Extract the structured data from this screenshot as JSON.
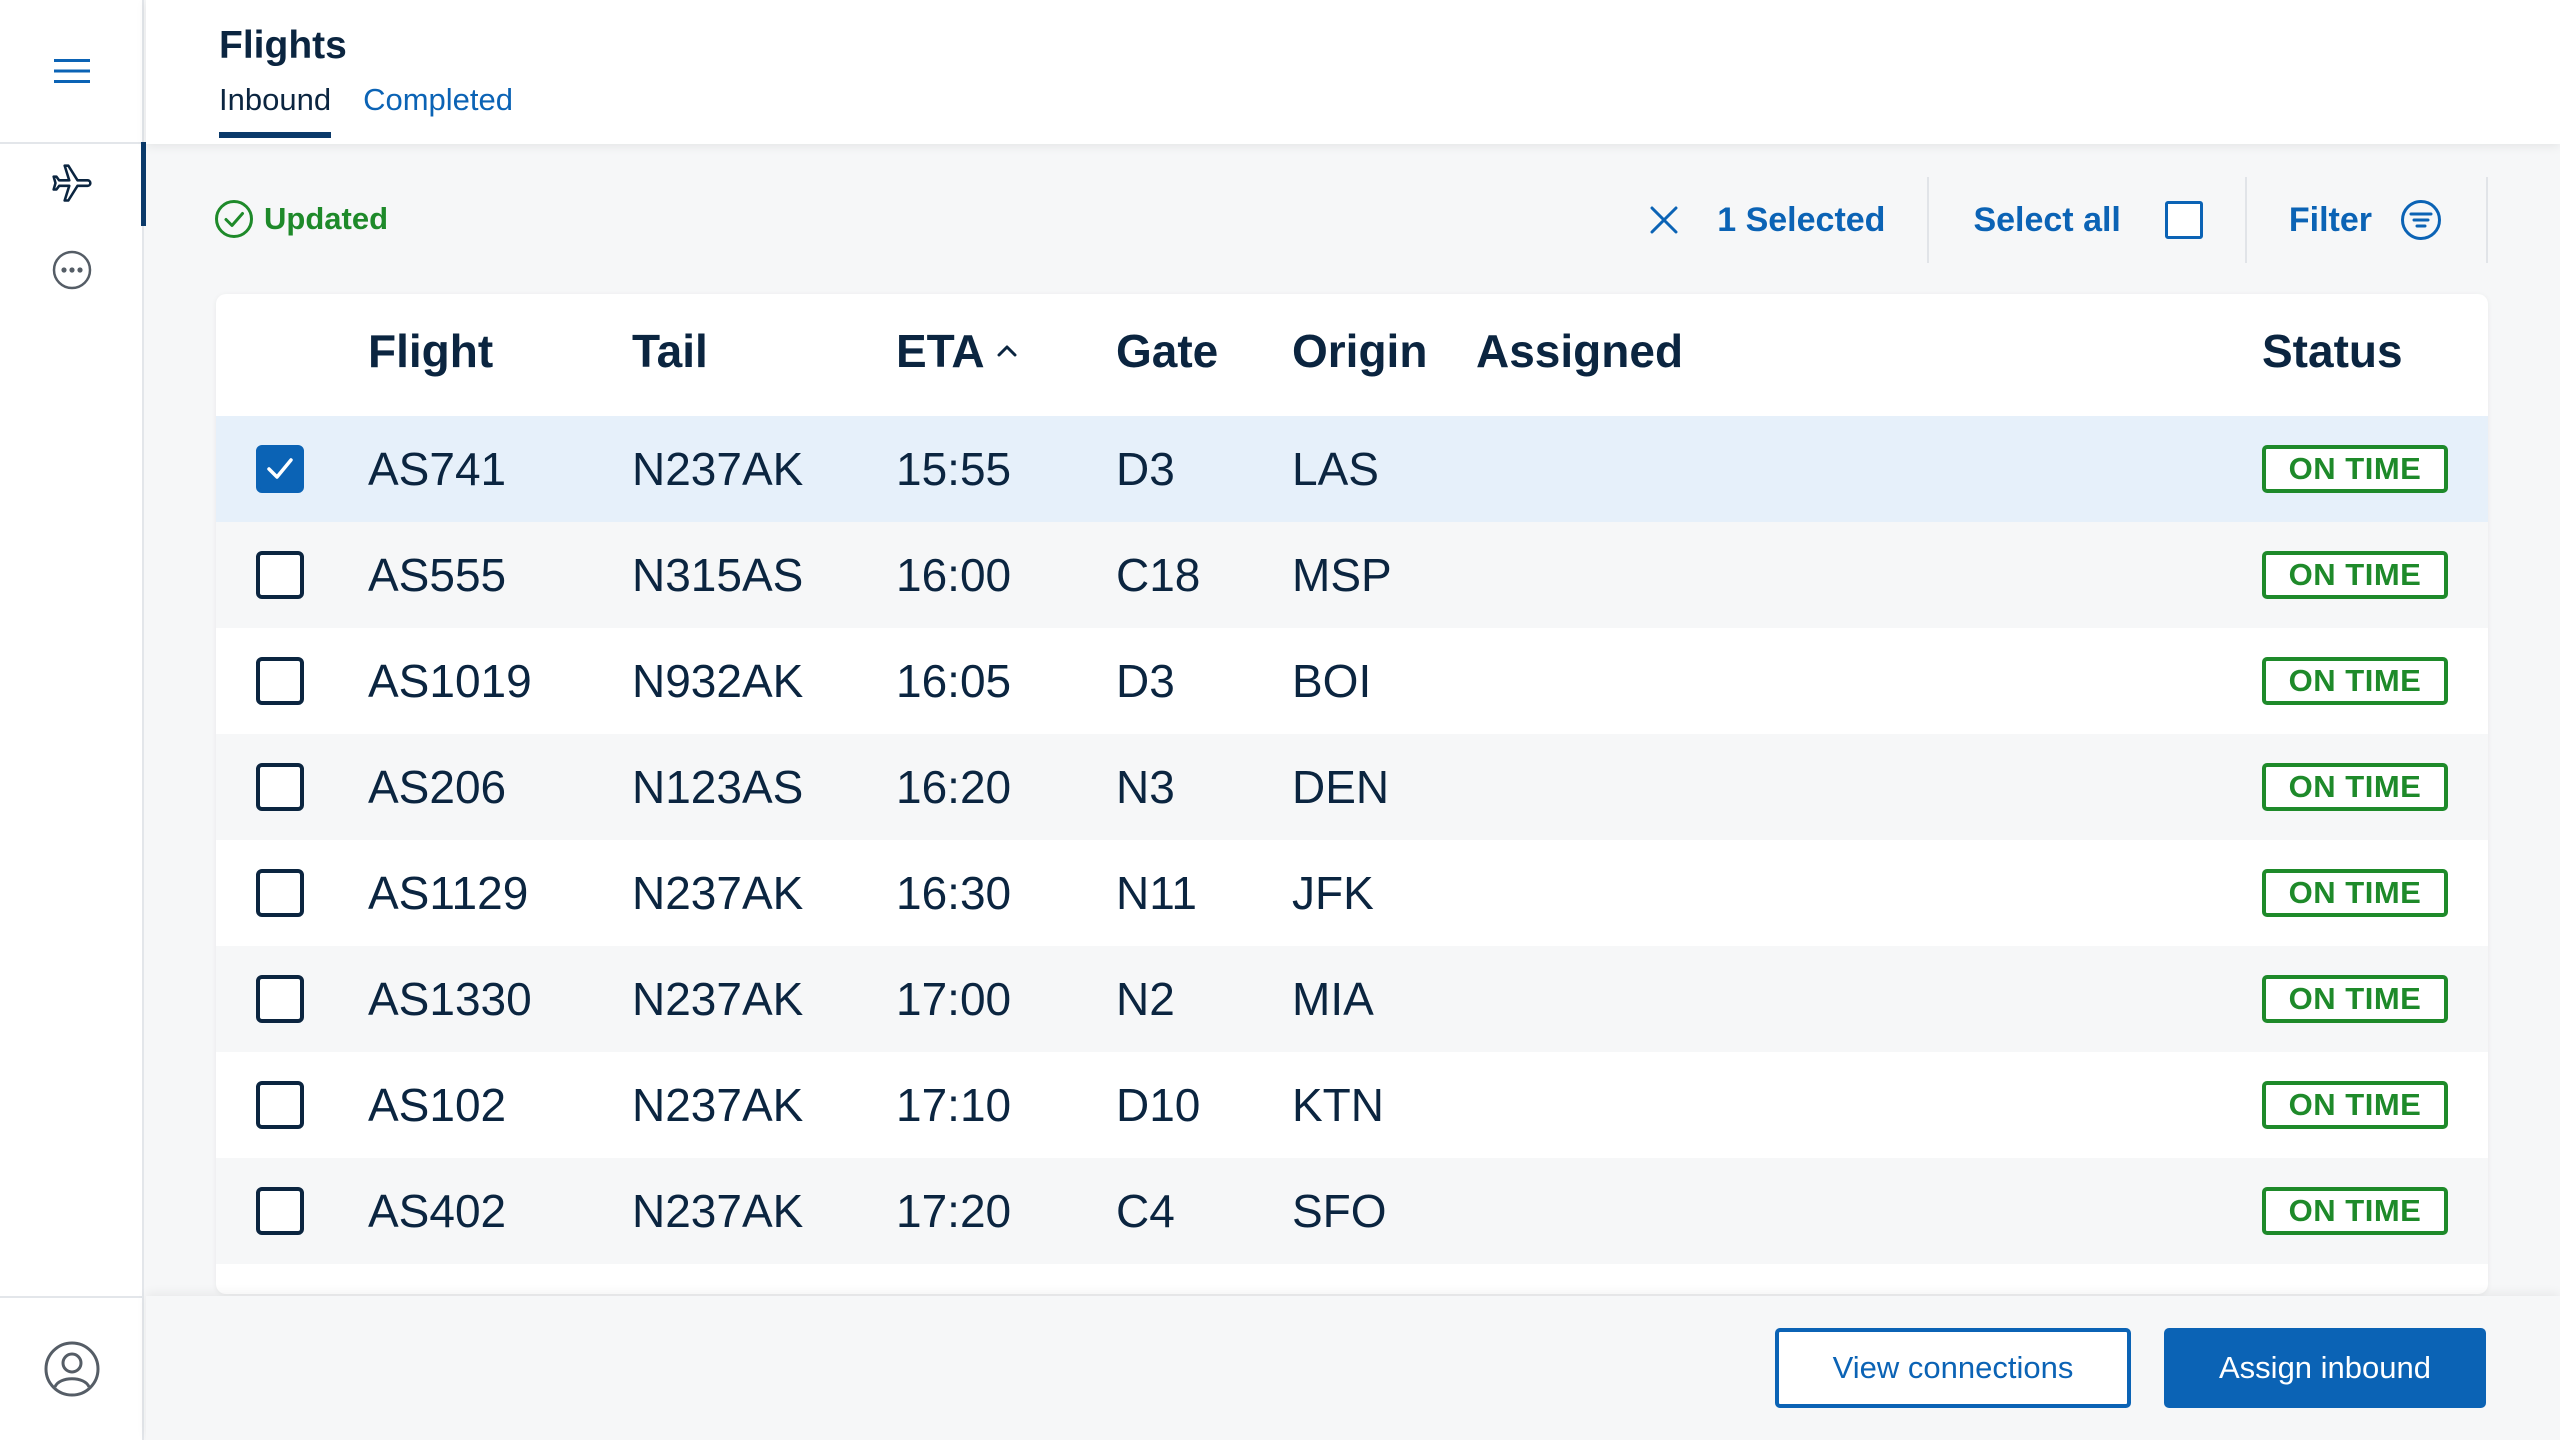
{
  "header": {
    "title": "Flights",
    "tabs": [
      {
        "label": "Inbound",
        "active": true
      },
      {
        "label": "Completed",
        "active": false
      }
    ]
  },
  "sidebar": {
    "icons": [
      "menu-icon",
      "airplane-icon",
      "more-icon",
      "user-profile-icon"
    ]
  },
  "toolbar": {
    "status_label": "Updated",
    "selected_label": "1 Selected",
    "select_all_label": "Select all",
    "filter_label": "Filter"
  },
  "table": {
    "columns": [
      "Flight",
      "Tail",
      "ETA",
      "Gate",
      "Origin",
      "Assigned",
      "Status"
    ],
    "sort_column": "ETA",
    "sort_direction": "ascending",
    "rows": [
      {
        "flight": "AS741",
        "tail": "N237AK",
        "eta": "15:55",
        "gate": "D3",
        "origin": "LAS",
        "assigned": "",
        "status": "ON TIME",
        "checked": true
      },
      {
        "flight": "AS555",
        "tail": "N315AS",
        "eta": "16:00",
        "gate": "C18",
        "origin": "MSP",
        "assigned": "",
        "status": "ON TIME",
        "checked": false
      },
      {
        "flight": "AS1019",
        "tail": "N932AK",
        "eta": "16:05",
        "gate": "D3",
        "origin": "BOI",
        "assigned": "",
        "status": "ON TIME",
        "checked": false
      },
      {
        "flight": "AS206",
        "tail": "N123AS",
        "eta": "16:20",
        "gate": "N3",
        "origin": "DEN",
        "assigned": "",
        "status": "ON TIME",
        "checked": false
      },
      {
        "flight": "AS1129",
        "tail": "N237AK",
        "eta": "16:30",
        "gate": "N11",
        "origin": "JFK",
        "assigned": "",
        "status": "ON TIME",
        "checked": false
      },
      {
        "flight": "AS1330",
        "tail": "N237AK",
        "eta": "17:00",
        "gate": "N2",
        "origin": "MIA",
        "assigned": "",
        "status": "ON TIME",
        "checked": false
      },
      {
        "flight": "AS102",
        "tail": "N237AK",
        "eta": "17:10",
        "gate": "D10",
        "origin": "KTN",
        "assigned": "",
        "status": "ON TIME",
        "checked": false
      },
      {
        "flight": "AS402",
        "tail": "N237AK",
        "eta": "17:20",
        "gate": "C4",
        "origin": "SFO",
        "assigned": "",
        "status": "ON TIME",
        "checked": false
      }
    ]
  },
  "footer": {
    "view_connections_label": "View connections",
    "assign_inbound_label": "Assign inbound"
  },
  "colors": {
    "primary": "#0b63b5",
    "navy": "#0b2540",
    "success": "#1e8a2a",
    "selected_row": "#e6f0fa"
  }
}
